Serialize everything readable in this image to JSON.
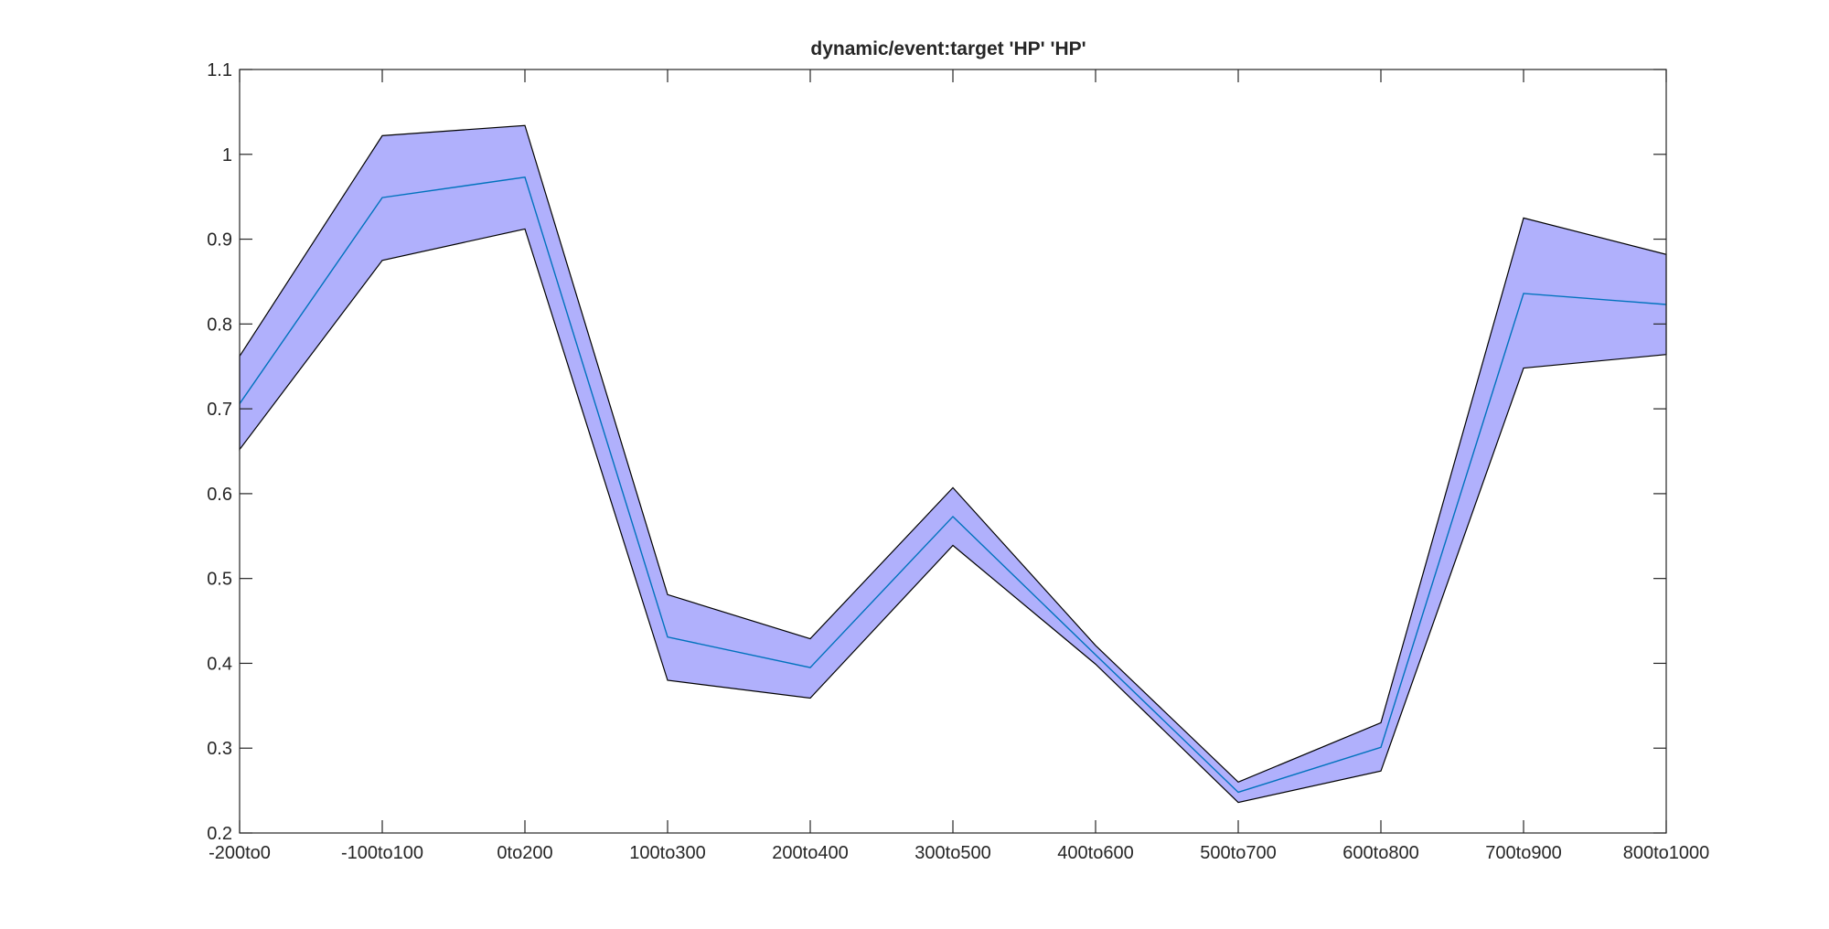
{
  "chart_data": {
    "type": "area",
    "title": "dynamic/event:target 'HP'  'HP'",
    "xlabel": "",
    "ylabel": "",
    "categories": [
      "-200to0",
      "-100to100",
      "0to200",
      "100to300",
      "200to400",
      "300to500",
      "400to600",
      "500to700",
      "600to800",
      "700to900",
      "800to1000"
    ],
    "ylim": [
      0.2,
      1.1
    ],
    "yticks": [
      0.2,
      0.3,
      0.4,
      0.5,
      0.6,
      0.7,
      0.8,
      0.9,
      1,
      1.1
    ],
    "ytick_labels": [
      "0.2",
      "0.3",
      "0.4",
      "0.5",
      "0.6",
      "0.7",
      "0.8",
      "0.9",
      "1",
      "1.1"
    ],
    "grid": false,
    "series": [
      {
        "role": "mean",
        "values": [
          0.706,
          0.949,
          0.973,
          0.431,
          0.395,
          0.573,
          0.41,
          0.248,
          0.301,
          0.836,
          0.823
        ]
      },
      {
        "role": "upper",
        "values": [
          0.762,
          1.022,
          1.034,
          0.481,
          0.429,
          0.607,
          0.421,
          0.26,
          0.33,
          0.925,
          0.882
        ]
      },
      {
        "role": "lower",
        "values": [
          0.652,
          0.875,
          0.912,
          0.38,
          0.359,
          0.539,
          0.399,
          0.236,
          0.273,
          0.748,
          0.764
        ]
      }
    ],
    "colors": {
      "band": "#b0b0fc",
      "band_edge": "#000000",
      "mean_line": "#0072bd",
      "axes": "#262626"
    }
  }
}
